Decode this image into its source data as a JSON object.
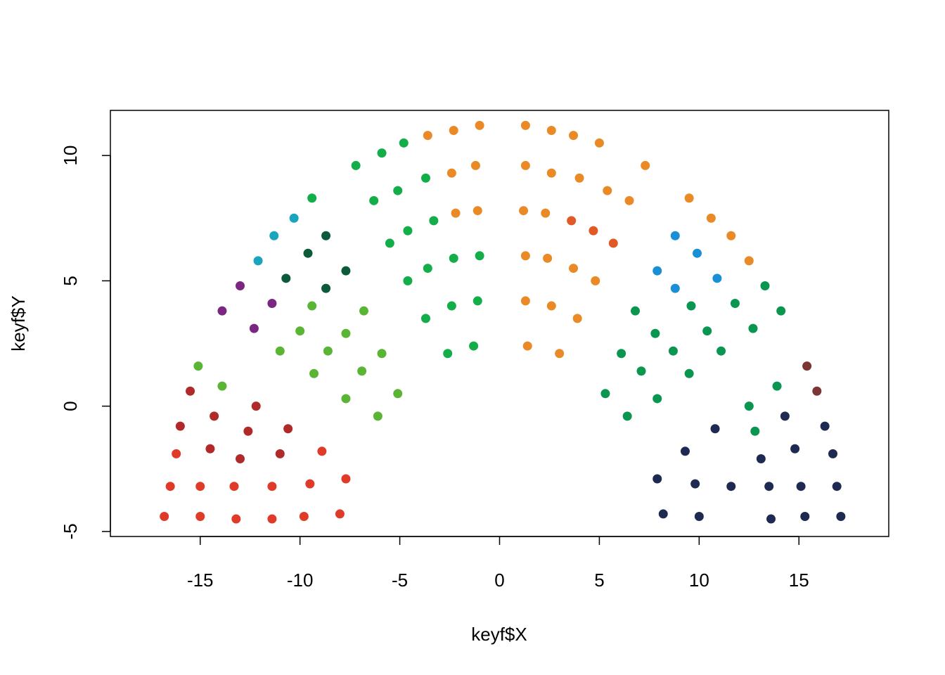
{
  "chart_data": {
    "type": "scatter",
    "title": "",
    "xlabel": "keyf$X",
    "ylabel": "keyf$Y",
    "xlim": [
      -19.5,
      19.5
    ],
    "ylim": [
      -5.2,
      11.8
    ],
    "x_ticks": [
      -15,
      -10,
      -5,
      0,
      5,
      10,
      15
    ],
    "x_tick_labels": [
      "-15",
      "-10",
      "-5",
      "0",
      "5",
      "10",
      "15"
    ],
    "y_ticks": [
      -5,
      0,
      5,
      10
    ],
    "y_tick_labels": [
      "-5",
      "0",
      "5",
      "10"
    ],
    "grid": false,
    "legend": "none",
    "colors": {
      "red": "#e03a29",
      "darkred": "#b02a2a",
      "maroon": "#7a3535",
      "lightgreen": "#5ab534",
      "green": "#13ad4a",
      "darkgreen": "#0a9650",
      "forest": "#0c5a3a",
      "teal": "#1aa5bf",
      "blue": "#1a8fd6",
      "purple": "#7b2680",
      "orange": "#ea8a26",
      "redorange": "#e05a26",
      "navy": "#1e2a52"
    },
    "points": [
      {
        "x": -16.8,
        "y": -4.4,
        "c": "red"
      },
      {
        "x": -15.0,
        "y": -4.4,
        "c": "red"
      },
      {
        "x": -13.2,
        "y": -4.5,
        "c": "red"
      },
      {
        "x": -11.4,
        "y": -4.5,
        "c": "red"
      },
      {
        "x": -9.8,
        "y": -4.4,
        "c": "red"
      },
      {
        "x": -8.0,
        "y": -4.3,
        "c": "red"
      },
      {
        "x": -16.5,
        "y": -3.2,
        "c": "red"
      },
      {
        "x": -15.0,
        "y": -3.2,
        "c": "red"
      },
      {
        "x": -13.3,
        "y": -3.2,
        "c": "red"
      },
      {
        "x": -11.4,
        "y": -3.2,
        "c": "red"
      },
      {
        "x": -9.5,
        "y": -3.1,
        "c": "red"
      },
      {
        "x": -7.7,
        "y": -2.9,
        "c": "red"
      },
      {
        "x": -16.2,
        "y": -1.9,
        "c": "red"
      },
      {
        "x": -8.9,
        "y": -1.8,
        "c": "red"
      },
      {
        "x": -16.0,
        "y": -0.8,
        "c": "darkred"
      },
      {
        "x": -14.5,
        "y": -1.7,
        "c": "darkred"
      },
      {
        "x": -13.0,
        "y": -2.1,
        "c": "darkred"
      },
      {
        "x": -11.0,
        "y": -1.9,
        "c": "darkred"
      },
      {
        "x": -15.5,
        "y": 0.6,
        "c": "darkred"
      },
      {
        "x": -14.3,
        "y": -0.4,
        "c": "darkred"
      },
      {
        "x": -12.6,
        "y": -1.0,
        "c": "darkred"
      },
      {
        "x": -12.2,
        "y": 0.0,
        "c": "darkred"
      },
      {
        "x": -10.6,
        "y": -0.9,
        "c": "darkred"
      },
      {
        "x": -15.1,
        "y": 1.6,
        "c": "lightgreen"
      },
      {
        "x": -13.9,
        "y": 0.8,
        "c": "lightgreen"
      },
      {
        "x": -11.0,
        "y": 2.2,
        "c": "lightgreen"
      },
      {
        "x": -10.0,
        "y": 3.0,
        "c": "lightgreen"
      },
      {
        "x": -9.4,
        "y": 4.0,
        "c": "lightgreen"
      },
      {
        "x": -9.3,
        "y": 1.3,
        "c": "lightgreen"
      },
      {
        "x": -8.6,
        "y": 2.2,
        "c": "lightgreen"
      },
      {
        "x": -7.7,
        "y": 0.3,
        "c": "lightgreen"
      },
      {
        "x": -7.7,
        "y": 2.9,
        "c": "lightgreen"
      },
      {
        "x": -6.9,
        "y": 1.4,
        "c": "lightgreen"
      },
      {
        "x": -6.8,
        "y": 3.8,
        "c": "lightgreen"
      },
      {
        "x": -6.1,
        "y": -0.4,
        "c": "lightgreen"
      },
      {
        "x": -5.9,
        "y": 2.1,
        "c": "lightgreen"
      },
      {
        "x": -5.1,
        "y": 0.5,
        "c": "lightgreen"
      },
      {
        "x": -13.9,
        "y": 3.8,
        "c": "purple"
      },
      {
        "x": -13.0,
        "y": 4.8,
        "c": "purple"
      },
      {
        "x": -12.3,
        "y": 3.1,
        "c": "purple"
      },
      {
        "x": -11.4,
        "y": 4.1,
        "c": "purple"
      },
      {
        "x": -12.1,
        "y": 5.8,
        "c": "teal"
      },
      {
        "x": -11.3,
        "y": 6.8,
        "c": "teal"
      },
      {
        "x": -10.3,
        "y": 7.5,
        "c": "teal"
      },
      {
        "x": -10.7,
        "y": 5.1,
        "c": "forest"
      },
      {
        "x": -9.6,
        "y": 6.1,
        "c": "forest"
      },
      {
        "x": -8.7,
        "y": 6.8,
        "c": "forest"
      },
      {
        "x": -8.7,
        "y": 4.7,
        "c": "forest"
      },
      {
        "x": -7.7,
        "y": 5.4,
        "c": "forest"
      },
      {
        "x": -9.4,
        "y": 8.3,
        "c": "green"
      },
      {
        "x": -7.2,
        "y": 9.6,
        "c": "green"
      },
      {
        "x": -6.3,
        "y": 8.2,
        "c": "green"
      },
      {
        "x": -5.9,
        "y": 10.1,
        "c": "green"
      },
      {
        "x": -5.5,
        "y": 6.5,
        "c": "green"
      },
      {
        "x": -5.1,
        "y": 8.6,
        "c": "green"
      },
      {
        "x": -4.8,
        "y": 10.5,
        "c": "green"
      },
      {
        "x": -4.6,
        "y": 7.0,
        "c": "green"
      },
      {
        "x": -4.6,
        "y": 5.0,
        "c": "green"
      },
      {
        "x": -3.7,
        "y": 9.1,
        "c": "green"
      },
      {
        "x": -3.6,
        "y": 5.5,
        "c": "green"
      },
      {
        "x": -3.3,
        "y": 7.4,
        "c": "green"
      },
      {
        "x": -3.7,
        "y": 3.5,
        "c": "green"
      },
      {
        "x": -2.3,
        "y": 5.9,
        "c": "green"
      },
      {
        "x": -2.4,
        "y": 4.0,
        "c": "green"
      },
      {
        "x": -2.6,
        "y": 2.1,
        "c": "green"
      },
      {
        "x": -1.0,
        "y": 6.0,
        "c": "green"
      },
      {
        "x": -1.1,
        "y": 4.2,
        "c": "green"
      },
      {
        "x": -1.3,
        "y": 2.4,
        "c": "green"
      },
      {
        "x": -3.6,
        "y": 10.8,
        "c": "orange"
      },
      {
        "x": -2.3,
        "y": 11.0,
        "c": "orange"
      },
      {
        "x": -1.0,
        "y": 11.2,
        "c": "orange"
      },
      {
        "x": -2.4,
        "y": 9.3,
        "c": "orange"
      },
      {
        "x": -1.2,
        "y": 9.6,
        "c": "orange"
      },
      {
        "x": -2.2,
        "y": 7.7,
        "c": "orange"
      },
      {
        "x": -1.1,
        "y": 7.8,
        "c": "orange"
      },
      {
        "x": 1.3,
        "y": 11.2,
        "c": "orange"
      },
      {
        "x": 2.6,
        "y": 11.0,
        "c": "orange"
      },
      {
        "x": 3.7,
        "y": 10.8,
        "c": "orange"
      },
      {
        "x": 5.0,
        "y": 10.5,
        "c": "orange"
      },
      {
        "x": 1.3,
        "y": 9.6,
        "c": "orange"
      },
      {
        "x": 2.6,
        "y": 9.3,
        "c": "orange"
      },
      {
        "x": 4.0,
        "y": 9.1,
        "c": "orange"
      },
      {
        "x": 5.4,
        "y": 8.6,
        "c": "orange"
      },
      {
        "x": 6.5,
        "y": 8.2,
        "c": "orange"
      },
      {
        "x": 7.3,
        "y": 9.6,
        "c": "orange"
      },
      {
        "x": 1.2,
        "y": 7.8,
        "c": "orange"
      },
      {
        "x": 2.3,
        "y": 7.7,
        "c": "orange"
      },
      {
        "x": 1.3,
        "y": 6.0,
        "c": "orange"
      },
      {
        "x": 2.4,
        "y": 5.9,
        "c": "orange"
      },
      {
        "x": 3.7,
        "y": 5.5,
        "c": "orange"
      },
      {
        "x": 4.8,
        "y": 5.0,
        "c": "orange"
      },
      {
        "x": 1.3,
        "y": 4.2,
        "c": "orange"
      },
      {
        "x": 2.6,
        "y": 4.0,
        "c": "orange"
      },
      {
        "x": 3.9,
        "y": 3.5,
        "c": "orange"
      },
      {
        "x": 1.4,
        "y": 2.4,
        "c": "orange"
      },
      {
        "x": 3.0,
        "y": 2.1,
        "c": "orange"
      },
      {
        "x": 9.5,
        "y": 8.3,
        "c": "orange"
      },
      {
        "x": 10.6,
        "y": 7.5,
        "c": "orange"
      },
      {
        "x": 11.6,
        "y": 6.8,
        "c": "orange"
      },
      {
        "x": 12.5,
        "y": 5.8,
        "c": "orange"
      },
      {
        "x": 3.6,
        "y": 7.4,
        "c": "redorange"
      },
      {
        "x": 4.7,
        "y": 7.0,
        "c": "redorange"
      },
      {
        "x": 5.7,
        "y": 6.5,
        "c": "redorange"
      },
      {
        "x": 8.8,
        "y": 6.8,
        "c": "blue"
      },
      {
        "x": 7.9,
        "y": 5.4,
        "c": "blue"
      },
      {
        "x": 9.9,
        "y": 6.1,
        "c": "blue"
      },
      {
        "x": 8.8,
        "y": 4.7,
        "c": "blue"
      },
      {
        "x": 10.9,
        "y": 5.1,
        "c": "blue"
      },
      {
        "x": 5.3,
        "y": 0.5,
        "c": "darkgreen"
      },
      {
        "x": 6.1,
        "y": 2.1,
        "c": "darkgreen"
      },
      {
        "x": 6.4,
        "y": -0.4,
        "c": "darkgreen"
      },
      {
        "x": 6.8,
        "y": 3.8,
        "c": "darkgreen"
      },
      {
        "x": 7.1,
        "y": 1.4,
        "c": "darkgreen"
      },
      {
        "x": 7.8,
        "y": 2.9,
        "c": "darkgreen"
      },
      {
        "x": 7.9,
        "y": 0.3,
        "c": "darkgreen"
      },
      {
        "x": 8.7,
        "y": 2.2,
        "c": "darkgreen"
      },
      {
        "x": 9.5,
        "y": 1.3,
        "c": "darkgreen"
      },
      {
        "x": 9.6,
        "y": 4.0,
        "c": "darkgreen"
      },
      {
        "x": 10.4,
        "y": 3.0,
        "c": "darkgreen"
      },
      {
        "x": 11.1,
        "y": 2.2,
        "c": "darkgreen"
      },
      {
        "x": 11.8,
        "y": 4.1,
        "c": "darkgreen"
      },
      {
        "x": 12.5,
        "y": 0.0,
        "c": "darkgreen"
      },
      {
        "x": 12.7,
        "y": 3.1,
        "c": "darkgreen"
      },
      {
        "x": 12.8,
        "y": -1.0,
        "c": "darkgreen"
      },
      {
        "x": 13.3,
        "y": 4.8,
        "c": "darkgreen"
      },
      {
        "x": 13.9,
        "y": 0.8,
        "c": "darkgreen"
      },
      {
        "x": 14.1,
        "y": 3.8,
        "c": "darkgreen"
      },
      {
        "x": 15.4,
        "y": 1.6,
        "c": "maroon"
      },
      {
        "x": 15.9,
        "y": 0.6,
        "c": "maroon"
      },
      {
        "x": 8.2,
        "y": -4.3,
        "c": "navy"
      },
      {
        "x": 7.9,
        "y": -2.9,
        "c": "navy"
      },
      {
        "x": 9.3,
        "y": -1.8,
        "c": "navy"
      },
      {
        "x": 9.8,
        "y": -3.1,
        "c": "navy"
      },
      {
        "x": 10.0,
        "y": -4.4,
        "c": "navy"
      },
      {
        "x": 10.8,
        "y": -0.9,
        "c": "navy"
      },
      {
        "x": 11.6,
        "y": -3.2,
        "c": "navy"
      },
      {
        "x": 13.1,
        "y": -2.1,
        "c": "navy"
      },
      {
        "x": 13.5,
        "y": -3.2,
        "c": "navy"
      },
      {
        "x": 13.6,
        "y": -4.5,
        "c": "navy"
      },
      {
        "x": 14.3,
        "y": -0.4,
        "c": "navy"
      },
      {
        "x": 14.8,
        "y": -1.7,
        "c": "navy"
      },
      {
        "x": 15.1,
        "y": -3.2,
        "c": "navy"
      },
      {
        "x": 15.3,
        "y": -4.4,
        "c": "navy"
      },
      {
        "x": 16.3,
        "y": -0.8,
        "c": "navy"
      },
      {
        "x": 16.7,
        "y": -1.9,
        "c": "navy"
      },
      {
        "x": 16.9,
        "y": -3.2,
        "c": "navy"
      },
      {
        "x": 17.1,
        "y": -4.4,
        "c": "navy"
      }
    ]
  }
}
